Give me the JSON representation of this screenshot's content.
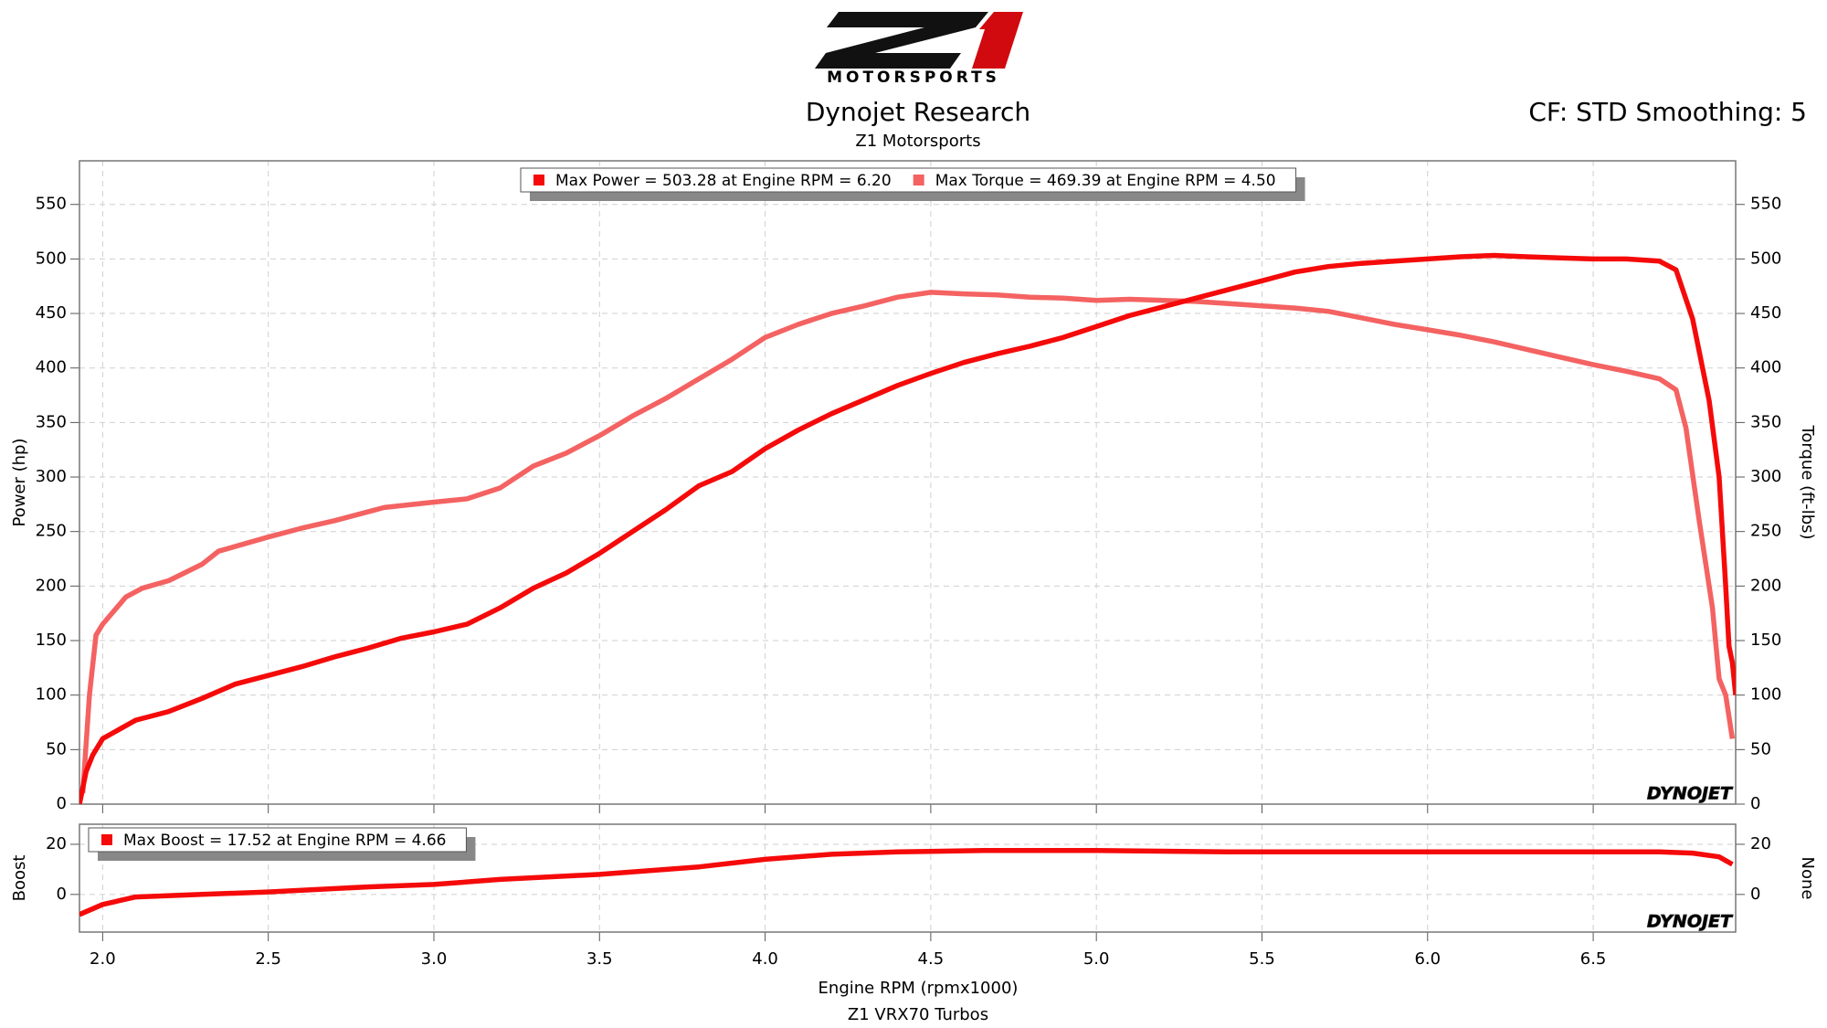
{
  "logo_text": "MOTORSPORTS",
  "title": "Dynojet Research",
  "subtitle": "Z1 Motorsports",
  "settings": "CF: STD Smoothing: 5",
  "footer": "Z1 VRX70 Turbos",
  "watermark": "DYNOJET",
  "chart_data": [
    {
      "type": "line",
      "ylabel": "Power (hp)",
      "y2label": "Torque (ft-lbs)",
      "xlim": [
        1.93,
        6.93
      ],
      "xticks": [
        {
          "value": 2,
          "label": "2.0"
        },
        2.5,
        {
          "value": 3,
          "label": "3.0"
        },
        3.5,
        {
          "value": 4,
          "label": "4.0"
        },
        4.5,
        {
          "value": 5,
          "label": "5.0"
        },
        5.5,
        {
          "value": 6,
          "label": "6.0"
        },
        6.5
      ],
      "ylim": [
        0,
        590
      ],
      "yticks": [
        0,
        50,
        100,
        150,
        200,
        250,
        300,
        350,
        400,
        450,
        500,
        550
      ],
      "y2lim": [
        0,
        590
      ],
      "y2ticks": [
        0,
        50,
        100,
        150,
        200,
        250,
        300,
        350,
        400,
        450,
        500,
        550
      ],
      "grid": true,
      "series": [
        {
          "name": "Max Power = 503.28 at Engine RPM = 6.20",
          "color": "#f50a0a",
          "x": [
            1.93,
            1.95,
            1.97,
            2.0,
            2.1,
            2.2,
            2.3,
            2.4,
            2.5,
            2.6,
            2.7,
            2.8,
            2.9,
            3.0,
            3.1,
            3.2,
            3.3,
            3.4,
            3.5,
            3.6,
            3.7,
            3.8,
            3.9,
            4.0,
            4.1,
            4.2,
            4.3,
            4.4,
            4.5,
            4.6,
            4.7,
            4.8,
            4.9,
            5.0,
            5.1,
            5.2,
            5.3,
            5.4,
            5.5,
            5.6,
            5.7,
            5.8,
            5.9,
            6.0,
            6.1,
            6.2,
            6.3,
            6.4,
            6.5,
            6.6,
            6.7,
            6.75,
            6.8,
            6.85,
            6.88,
            6.9,
            6.91,
            6.92,
            6.93
          ],
          "values": [
            0,
            30,
            45,
            60,
            77,
            85,
            97,
            110,
            118,
            126,
            135,
            143,
            152,
            158,
            165,
            180,
            198,
            212,
            230,
            250,
            270,
            292,
            305,
            326,
            343,
            358,
            371,
            384,
            395,
            405,
            413,
            420,
            428,
            438,
            448,
            456,
            464,
            472,
            480,
            488,
            493,
            496,
            498,
            500,
            502,
            503.28,
            502,
            501,
            500,
            500,
            498,
            490,
            445,
            370,
            300,
            200,
            145,
            130,
            100
          ]
        },
        {
          "name": "Max Torque = 469.39 at Engine RPM = 4.50",
          "color": "#f46262",
          "axis": "y2",
          "x": [
            1.94,
            1.96,
            1.98,
            2.0,
            2.07,
            2.12,
            2.2,
            2.3,
            2.35,
            2.5,
            2.6,
            2.7,
            2.8,
            2.85,
            3.0,
            3.1,
            3.2,
            3.3,
            3.4,
            3.5,
            3.6,
            3.7,
            3.8,
            3.9,
            4.0,
            4.1,
            4.2,
            4.3,
            4.4,
            4.5,
            4.6,
            4.7,
            4.8,
            4.9,
            5.0,
            5.1,
            5.2,
            5.3,
            5.4,
            5.5,
            5.6,
            5.7,
            5.8,
            5.9,
            6.0,
            6.1,
            6.2,
            6.3,
            6.4,
            6.5,
            6.6,
            6.7,
            6.75,
            6.78,
            6.82,
            6.86,
            6.88,
            6.9,
            6.92
          ],
          "values": [
            10,
            100,
            155,
            165,
            190,
            198,
            205,
            220,
            232,
            245,
            253,
            260,
            268,
            272,
            277,
            280,
            290,
            310,
            322,
            338,
            356,
            372,
            390,
            408,
            428,
            440,
            450,
            457,
            465,
            469.39,
            468,
            467,
            465,
            464,
            462,
            463,
            462,
            461,
            459,
            457,
            455,
            452,
            446,
            440,
            435,
            430,
            424,
            417,
            410,
            403,
            397,
            390,
            380,
            345,
            260,
            180,
            115,
            100,
            60
          ]
        }
      ]
    },
    {
      "type": "line",
      "xlabel": "Engine RPM (rpmx1000)",
      "ylabel": "Boost",
      "y2label": "None",
      "xlim": [
        1.93,
        6.93
      ],
      "xticks": [
        {
          "value": 2,
          "label": "2.0"
        },
        2.5,
        {
          "value": 3,
          "label": "3.0"
        },
        3.5,
        {
          "value": 4,
          "label": "4.0"
        },
        4.5,
        {
          "value": 5,
          "label": "5.0"
        },
        5.5,
        {
          "value": 6,
          "label": "6.0"
        },
        6.5
      ],
      "ylim": [
        -15,
        28
      ],
      "yticks": [
        0,
        20
      ],
      "y2lim": [
        -15,
        28
      ],
      "y2ticks": [
        0,
        20
      ],
      "grid": true,
      "series": [
        {
          "name": "Max Boost = 17.52 at Engine RPM = 4.66",
          "color": "#f50a0a",
          "x": [
            1.93,
            2.0,
            2.1,
            2.3,
            2.5,
            2.8,
            3.0,
            3.2,
            3.5,
            3.8,
            4.0,
            4.2,
            4.4,
            4.66,
            5.0,
            5.4,
            6.0,
            6.7,
            6.8,
            6.88,
            6.92
          ],
          "values": [
            -8,
            -4,
            -1,
            0,
            1,
            3,
            4,
            6,
            8,
            11,
            14,
            16,
            17,
            17.52,
            17.5,
            17,
            17,
            17,
            16.5,
            15,
            12
          ]
        }
      ]
    }
  ]
}
